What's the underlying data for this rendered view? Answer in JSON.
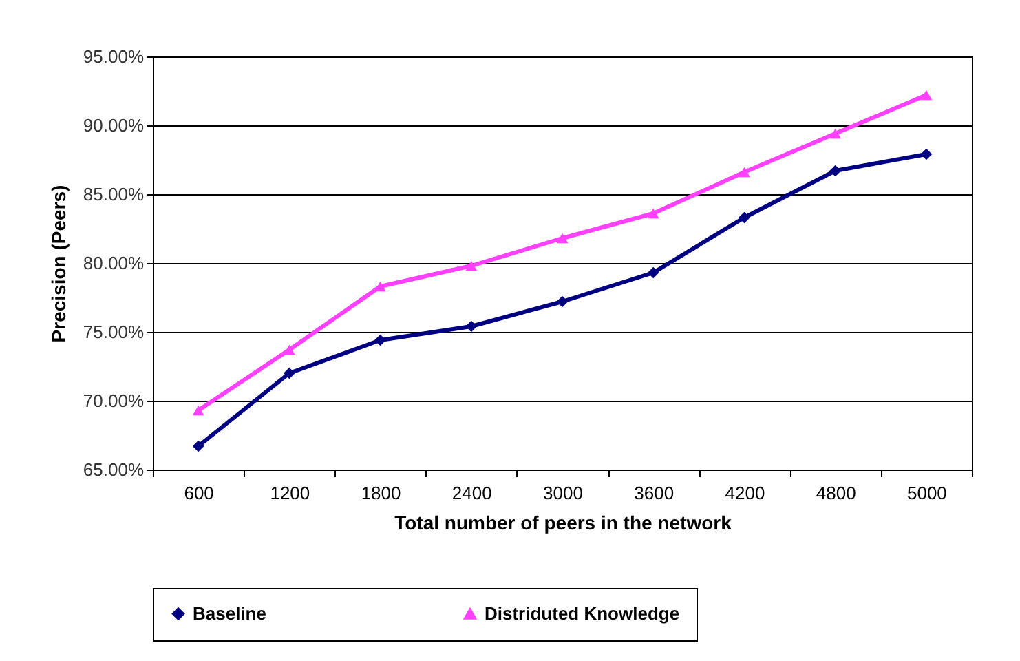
{
  "chart_data": {
    "type": "line",
    "xlabel": "Total number of peers in the network",
    "ylabel": "Precision (Peers)",
    "categories": [
      "600",
      "1200",
      "1800",
      "2400",
      "3000",
      "3600",
      "4200",
      "4800",
      "5000"
    ],
    "series": [
      {
        "name": "Baseline",
        "color": "#000080",
        "marker": "diamond",
        "values": [
          66.7,
          72.0,
          74.4,
          75.4,
          77.2,
          79.3,
          83.3,
          86.7,
          87.9
        ]
      },
      {
        "name": "Distriduted Knowledge",
        "color": "#ff40ff",
        "marker": "triangle",
        "values": [
          69.3,
          73.7,
          78.3,
          79.8,
          81.8,
          83.6,
          86.6,
          89.4,
          92.2
        ]
      }
    ],
    "ylim": [
      65,
      95
    ],
    "yticks": [
      {
        "value": 65,
        "label": "65.00%"
      },
      {
        "value": 70,
        "label": "70.00%"
      },
      {
        "value": 75,
        "label": "75.00%"
      },
      {
        "value": 80,
        "label": "80.00%"
      },
      {
        "value": 85,
        "label": "85.00%"
      },
      {
        "value": 90,
        "label": "90.00%"
      },
      {
        "value": 95,
        "label": "95.00%"
      }
    ],
    "grid": "y",
    "legend": "bottom",
    "line_style": "solid"
  }
}
